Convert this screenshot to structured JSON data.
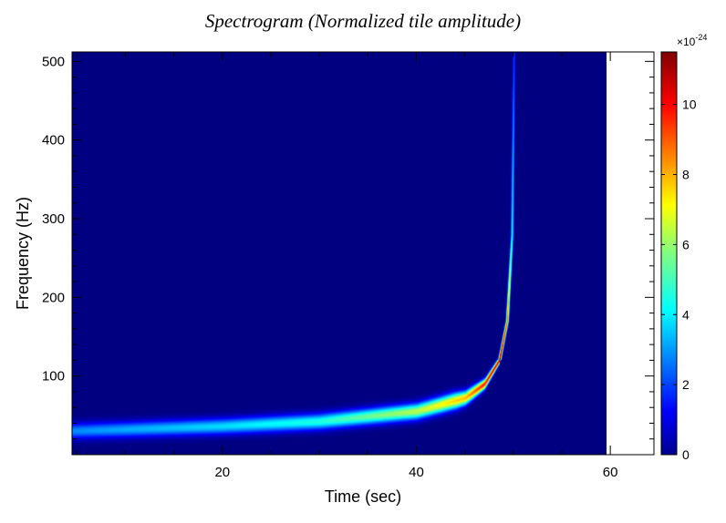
{
  "chart_data": {
    "type": "heatmap",
    "title": "Spectrogram (Normalized tile amplitude)",
    "xlabel": "Time (sec)",
    "ylabel": "Frequency (Hz)",
    "xlim": [
      4.5,
      64.5
    ],
    "ylim": [
      0,
      512
    ],
    "data_x_extent": [
      4.5,
      59.5
    ],
    "xticks": [
      20,
      40,
      60
    ],
    "yticks": [
      100,
      200,
      300,
      400,
      500
    ],
    "colorbar": {
      "range": [
        0,
        11.5
      ],
      "ticks": [
        0,
        2,
        4,
        6,
        8,
        10
      ],
      "multiplier_base": "×10",
      "multiplier_exponent": "-24",
      "colormap": "jet"
    },
    "background_value": 0,
    "track": {
      "description_points": [
        {
          "t": 4.5,
          "f": 30,
          "amp": 3.2
        },
        {
          "t": 10,
          "f": 32,
          "amp": 3.6
        },
        {
          "t": 20,
          "f": 36,
          "amp": 4.2
        },
        {
          "t": 30,
          "f": 42,
          "amp": 5.0
        },
        {
          "t": 40,
          "f": 55,
          "amp": 6.8
        },
        {
          "t": 45,
          "f": 72,
          "amp": 8.5
        },
        {
          "t": 47,
          "f": 90,
          "amp": 10.5
        },
        {
          "t": 48.5,
          "f": 120,
          "amp": 11.3
        },
        {
          "t": 49.3,
          "f": 170,
          "amp": 9.0
        },
        {
          "t": 49.8,
          "f": 280,
          "amp": 4.5
        },
        {
          "t": 50,
          "f": 512,
          "amp": 2.0
        }
      ],
      "coalescence_time": 50.2
    }
  }
}
